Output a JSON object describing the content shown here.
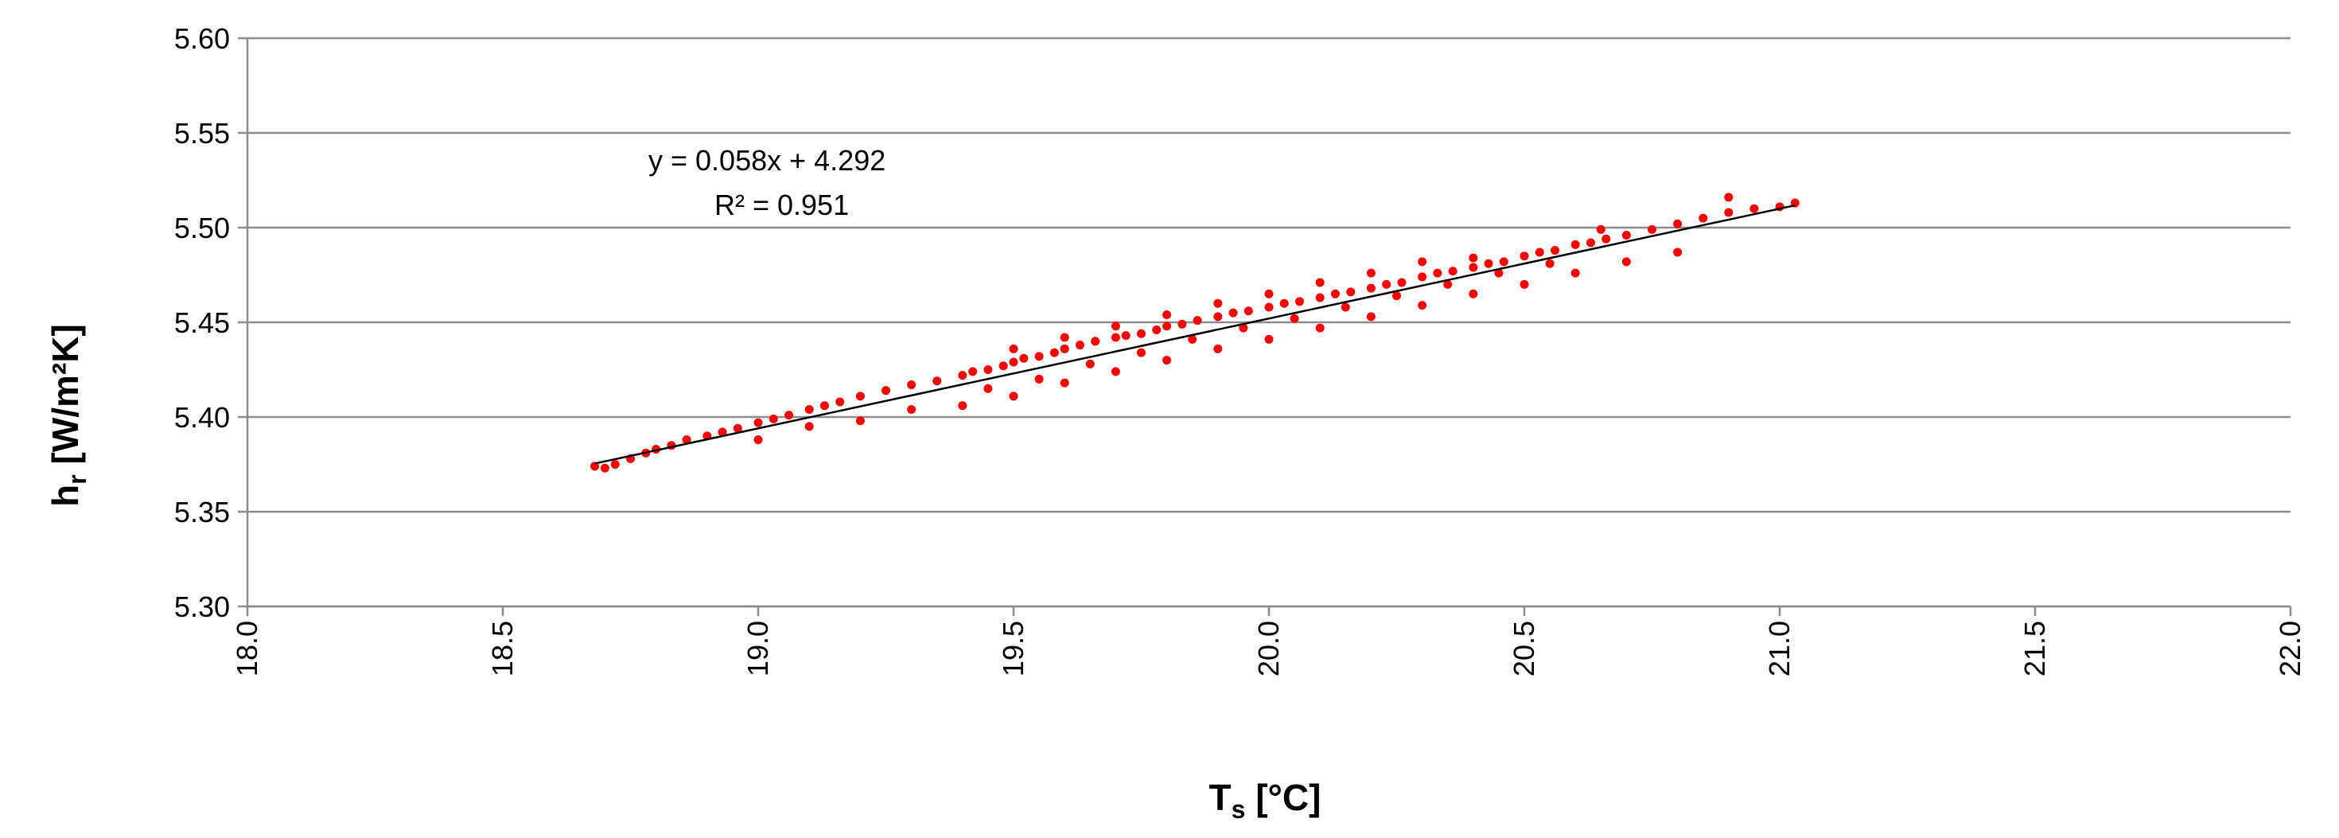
{
  "chart_data": {
    "type": "scatter",
    "title": "",
    "xlabel": {
      "main": "T",
      "sub": "s",
      "unit": " [°C]"
    },
    "ylabel": {
      "main": "h",
      "sub": "r",
      "unit": " [W/m²K]"
    },
    "xlim": [
      18.0,
      22.0
    ],
    "ylim": [
      5.3,
      5.6
    ],
    "x_ticks": [
      "18.0",
      "18.5",
      "19.0",
      "19.5",
      "20.0",
      "20.5",
      "21.0",
      "21.5",
      "22.0"
    ],
    "y_ticks": [
      "5.30",
      "5.35",
      "5.40",
      "5.45",
      "5.50",
      "5.55",
      "5.60"
    ],
    "grid": "horizontal",
    "point_color": "#ff0000",
    "trend_color": "#000000",
    "trendline": {
      "slope": 0.058,
      "intercept": 4.292,
      "x_range": [
        18.68,
        21.03
      ]
    },
    "annotations": [
      "y = 0.058x  + 4.292",
      "R² = 0.951"
    ],
    "series": [
      {
        "x": [
          18.68,
          18.7,
          18.72,
          18.75,
          18.78,
          18.8,
          18.83,
          18.86,
          18.9,
          18.93,
          18.96,
          19.0,
          19.03,
          19.06,
          19.1,
          19.13,
          19.16,
          19.2,
          19.25,
          19.3,
          19.35,
          19.4,
          19.42,
          19.45,
          19.48,
          19.5,
          19.52,
          19.55,
          19.58,
          19.6,
          19.63,
          19.66,
          19.7,
          19.72,
          19.75,
          19.78,
          19.8,
          19.83,
          19.86,
          19.9,
          19.93,
          19.96,
          20.0,
          20.03,
          20.06,
          20.1,
          20.13,
          20.16,
          20.2,
          20.23,
          20.26,
          20.3,
          20.33,
          20.36,
          20.4,
          20.43,
          20.46,
          20.5,
          20.53,
          20.56,
          20.6,
          20.63,
          20.66,
          20.7,
          20.75,
          20.8,
          20.85,
          20.9,
          20.95,
          21.0,
          21.03,
          19.4,
          19.5,
          19.6,
          19.7,
          19.8,
          19.9,
          20.0,
          20.1,
          20.2,
          20.3,
          20.4,
          20.5,
          20.6,
          20.7,
          20.8,
          19.5,
          19.6,
          19.7,
          19.8,
          19.9,
          20.0,
          20.1,
          20.2,
          20.3,
          20.4,
          19.2,
          19.3,
          19.45,
          19.55,
          19.65,
          19.75,
          19.85,
          19.95,
          20.05,
          20.15,
          20.25,
          20.35,
          20.45,
          20.55,
          20.65,
          20.9,
          19.0,
          19.1
        ],
        "y": [
          5.374,
          5.373,
          5.375,
          5.378,
          5.381,
          5.383,
          5.385,
          5.388,
          5.39,
          5.392,
          5.394,
          5.397,
          5.399,
          5.401,
          5.404,
          5.406,
          5.408,
          5.411,
          5.414,
          5.417,
          5.419,
          5.422,
          5.424,
          5.425,
          5.427,
          5.429,
          5.431,
          5.432,
          5.434,
          5.436,
          5.438,
          5.44,
          5.442,
          5.443,
          5.444,
          5.446,
          5.448,
          5.449,
          5.451,
          5.453,
          5.455,
          5.456,
          5.458,
          5.46,
          5.461,
          5.463,
          5.465,
          5.466,
          5.468,
          5.47,
          5.471,
          5.474,
          5.476,
          5.477,
          5.479,
          5.481,
          5.482,
          5.485,
          5.487,
          5.488,
          5.491,
          5.492,
          5.494,
          5.496,
          5.499,
          5.502,
          5.505,
          5.508,
          5.51,
          5.511,
          5.513,
          5.406,
          5.411,
          5.418,
          5.424,
          5.43,
          5.436,
          5.441,
          5.447,
          5.453,
          5.459,
          5.465,
          5.47,
          5.476,
          5.482,
          5.487,
          5.436,
          5.442,
          5.448,
          5.454,
          5.46,
          5.465,
          5.471,
          5.476,
          5.482,
          5.484,
          5.398,
          5.404,
          5.415,
          5.42,
          5.428,
          5.434,
          5.441,
          5.447,
          5.452,
          5.458,
          5.464,
          5.47,
          5.476,
          5.481,
          5.499,
          5.516,
          5.388,
          5.395
        ]
      }
    ]
  }
}
